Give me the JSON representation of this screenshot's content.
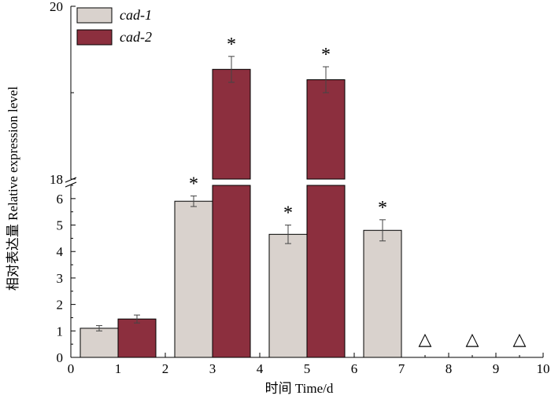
{
  "chart_data": {
    "type": "bar",
    "xlabel": "时间 Time/d",
    "ylabel": "相对表达量 Relative expression level",
    "xlim": [
      0,
      10
    ],
    "x_ticks": [
      "0",
      "1",
      "2",
      "3",
      "4",
      "5",
      "6",
      "7",
      "8",
      "9",
      "10"
    ],
    "y_axis_break": {
      "lower_range": [
        0,
        6.5
      ],
      "upper_range": [
        18,
        20
      ],
      "lower_ticks": [
        "0",
        "1",
        "2",
        "3",
        "4",
        "5",
        "6"
      ],
      "upper_ticks": [
        "18",
        "20"
      ]
    },
    "legend": {
      "placement": "top-left"
    },
    "series": [
      {
        "name": "cad-1",
        "color": "#d9d2cd",
        "x": [
          0.6,
          2.6,
          4.6,
          6.6
        ],
        "values": [
          1.1,
          5.9,
          4.65,
          4.8
        ],
        "errors": [
          0.1,
          0.2,
          0.35,
          0.4
        ],
        "significance": [
          "",
          "*",
          "*",
          "*"
        ]
      },
      {
        "name": "cad-2",
        "color": "#8c2f3e",
        "x": [
          1.4,
          3.4,
          5.4
        ],
        "values": [
          1.45,
          19.27,
          19.15
        ],
        "errors": [
          0.15,
          0.15,
          0.15
        ],
        "significance": [
          "",
          "*",
          "*"
        ]
      }
    ],
    "not_detected": {
      "symbol": "△",
      "x": [
        7.5,
        8.5,
        9.5
      ]
    }
  }
}
